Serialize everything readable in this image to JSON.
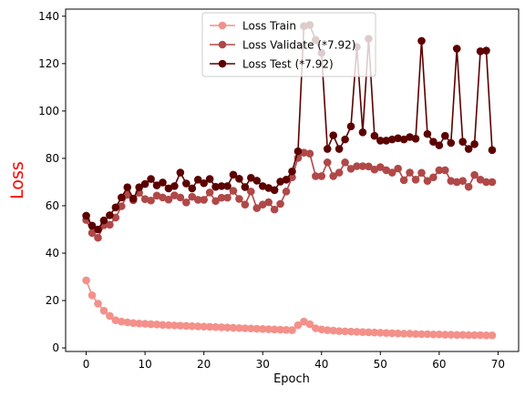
{
  "chart_data": {
    "type": "line",
    "xlabel": "Epoch",
    "ylabel": "Loss",
    "ylabel_color": "#ff0000",
    "xlim": [
      -3.5,
      73.5
    ],
    "ylim": [
      -1.5,
      143
    ],
    "xticks": [
      0,
      10,
      20,
      30,
      40,
      50,
      60,
      70
    ],
    "yticks": [
      0,
      20,
      40,
      60,
      80,
      100,
      120,
      140
    ],
    "grid": false,
    "legend_position": "top-center",
    "x": [
      0,
      1,
      2,
      3,
      4,
      5,
      6,
      7,
      8,
      9,
      10,
      11,
      12,
      13,
      14,
      15,
      16,
      17,
      18,
      19,
      20,
      21,
      22,
      23,
      24,
      25,
      26,
      27,
      28,
      29,
      30,
      31,
      32,
      33,
      34,
      35,
      36,
      37,
      38,
      39,
      40,
      41,
      42,
      43,
      44,
      45,
      46,
      47,
      48,
      49,
      50,
      51,
      52,
      53,
      54,
      55,
      56,
      57,
      58,
      59,
      60,
      61,
      62,
      63,
      64,
      65,
      66,
      67,
      68,
      69
    ],
    "series": [
      {
        "name": "Loss Train",
        "color": "#f4908a",
        "values": [
          28.5,
          22.2,
          18.7,
          15.7,
          13.5,
          11.7,
          11.1,
          10.8,
          10.5,
          10.3,
          10.2,
          10.0,
          9.9,
          9.7,
          9.6,
          9.5,
          9.4,
          9.3,
          9.2,
          9.1,
          9.0,
          8.9,
          8.8,
          8.7,
          8.6,
          8.5,
          8.4,
          8.3,
          8.2,
          8.1,
          8.0,
          7.9,
          7.8,
          7.7,
          7.6,
          7.5,
          9.6,
          11.1,
          10.0,
          8.3,
          7.8,
          7.5,
          7.3,
          7.1,
          7.0,
          6.9,
          6.8,
          6.7,
          6.6,
          6.5,
          6.4,
          6.3,
          6.2,
          6.1,
          6.0,
          6.0,
          5.9,
          5.8,
          5.8,
          5.7,
          5.7,
          5.6,
          5.6,
          5.5,
          5.5,
          5.4,
          5.4,
          5.4,
          5.3,
          5.3
        ]
      },
      {
        "name": "Loss Validate (*7.92)",
        "color": "#b04848",
        "values": [
          54.0,
          48.5,
          46.5,
          51.8,
          52.0,
          55.0,
          59.8,
          64.6,
          62.3,
          65.5,
          62.8,
          62.2,
          64.3,
          63.5,
          62.6,
          64.4,
          63.5,
          61.4,
          63.8,
          62.5,
          62.5,
          65.6,
          62.0,
          63.4,
          63.4,
          66.3,
          62.9,
          60.5,
          66.0,
          59.0,
          60.5,
          61.5,
          58.4,
          60.8,
          66.0,
          72.0,
          80.2,
          82.4,
          82.0,
          72.5,
          72.5,
          78.3,
          72.5,
          74.0,
          78.3,
          75.6,
          76.7,
          76.7,
          76.6,
          75.3,
          76.3,
          75.0,
          74.0,
          75.7,
          70.8,
          74.0,
          71.0,
          73.9,
          70.5,
          72.0,
          75.0,
          75.0,
          70.5,
          70.0,
          70.5,
          68.0,
          73.0,
          71.0,
          70.0,
          70.0
        ]
      },
      {
        "name": "Loss Test (*7.92)",
        "color": "#5c0000",
        "values": [
          55.8,
          51.6,
          50.0,
          53.8,
          56.0,
          59.3,
          63.5,
          67.8,
          63.0,
          67.8,
          69.2,
          71.3,
          68.6,
          69.8,
          67.3,
          68.3,
          74.0,
          69.4,
          67.3,
          71.0,
          69.5,
          71.3,
          68.0,
          68.3,
          68.3,
          73.1,
          71.4,
          67.9,
          71.8,
          70.6,
          68.3,
          67.5,
          66.6,
          70.2,
          71.0,
          74.5,
          83.0,
          135.8,
          136.3,
          130.0,
          124.5,
          84.0,
          89.7,
          84.0,
          88.0,
          93.5,
          127.0,
          91.0,
          130.5,
          89.5,
          87.5,
          87.5,
          88.0,
          88.5,
          88.0,
          89.0,
          88.3,
          129.6,
          90.3,
          87.0,
          85.5,
          89.5,
          86.5,
          126.3,
          87.0,
          84.0,
          86.0,
          125.2,
          125.5,
          83.5
        ]
      }
    ]
  }
}
